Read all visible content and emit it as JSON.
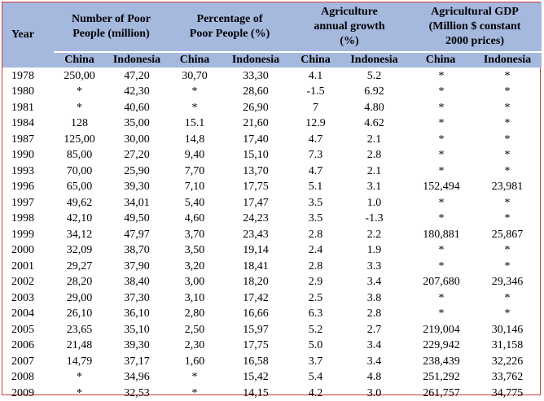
{
  "headers": {
    "year": "Year",
    "poor_people": [
      "Number of Poor",
      "People (million)"
    ],
    "percentage": [
      "Percentage of",
      "Poor People (%)"
    ],
    "agri_growth": [
      "Agriculture",
      "annual growth",
      "(%)"
    ],
    "agri_gdp": [
      "Agricultural GDP",
      "(Million $ constant",
      "2000 prices)"
    ],
    "country_china": "China",
    "country_indonesia": "Indonesia"
  },
  "rows": [
    [
      "1978",
      "250,00",
      "47,20",
      "30,70",
      "33,30",
      "4.1",
      "5.2",
      "*",
      "*"
    ],
    [
      "1980",
      "*",
      "42,30",
      "*",
      "28,60",
      "-1.5",
      "6.92",
      "*",
      "*"
    ],
    [
      "1981",
      "*",
      "40,60",
      "*",
      "26,90",
      "7",
      "4.80",
      "*",
      "*"
    ],
    [
      "1984",
      "128",
      "35,00",
      "15.1",
      "21,60",
      "12.9",
      "4.62",
      "*",
      "*"
    ],
    [
      "1987",
      "125,00",
      "30,00",
      "14,8",
      "17,40",
      "4.7",
      "2.1",
      "*",
      "*"
    ],
    [
      "1990",
      "85,00",
      "27,20",
      "9,40",
      "15,10",
      "7.3",
      "2.8",
      "*",
      "*"
    ],
    [
      "1993",
      "70,00",
      "25,90",
      "7,70",
      "13,70",
      "4.7",
      "2.1",
      "*",
      "*"
    ],
    [
      "1996",
      "65,00",
      "39,30",
      "7,10",
      "17,75",
      "5.1",
      "3.1",
      "152,494",
      "23,981"
    ],
    [
      "1997",
      "49,62",
      "34,01",
      "5,40",
      "17,47",
      "3.5",
      "1.0",
      "*",
      "*"
    ],
    [
      "1998",
      "42,10",
      "49,50",
      "4,60",
      "24,23",
      "3.5",
      "-1.3",
      "*",
      "*"
    ],
    [
      "1999",
      "34,12",
      "47,97",
      "3,70",
      "23,43",
      "2.8",
      "2.2",
      "180,881",
      "25,867"
    ],
    [
      "2000",
      "32,09",
      "38,70",
      "3,50",
      "19,14",
      "2.4",
      "1.9",
      "*",
      "*"
    ],
    [
      "2001",
      "29,27",
      "37,90",
      "3,20",
      "18,41",
      "2.8",
      "3.3",
      "*",
      "*"
    ],
    [
      "2002",
      "28,20",
      "38,40",
      "3,00",
      "18,20",
      "2.9",
      "3.4",
      "207,680",
      "29,346"
    ],
    [
      "2003",
      "29,00",
      "37,30",
      "3,10",
      "17,42",
      "2.5",
      "3.8",
      "*",
      "*"
    ],
    [
      "2004",
      "26,10",
      "36,10",
      "2,80",
      "16,66",
      "6.3",
      "2.8",
      "*",
      "*"
    ],
    [
      "2005",
      "23,65",
      "35,10",
      "2,50",
      "15,97",
      "5.2",
      "2.7",
      "219,004",
      "30,146"
    ],
    [
      "2006",
      "21,48",
      "39,30",
      "2,30",
      "17,75",
      "5.0",
      "3.4",
      "229,942",
      "31,158"
    ],
    [
      "2007",
      "14,79",
      "37,17",
      "1,60",
      "16,58",
      "3.7",
      "3.4",
      "238,439",
      "32,226"
    ],
    [
      "2008",
      "*",
      "34,96",
      "*",
      "15,42",
      "5.4",
      "4.8",
      "251,292",
      "33,762"
    ],
    [
      "2009",
      "*",
      "32,53",
      "*",
      "14,15",
      "4.2",
      "3.0",
      "261,757",
      "34,775"
    ]
  ],
  "colors": {
    "header_bg": "#a5b8de",
    "frame_border": "#d43a3a"
  }
}
